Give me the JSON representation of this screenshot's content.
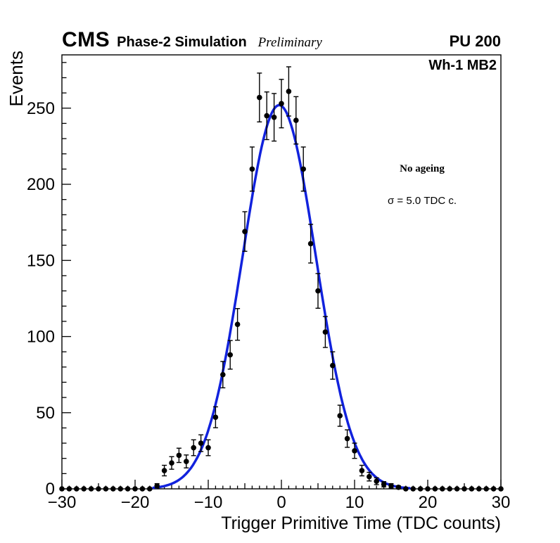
{
  "header": {
    "cms": "CMS",
    "subtitle": "Phase-2 Simulation",
    "preliminary": "Preliminary",
    "right_label": "PU 200"
  },
  "plot": {
    "corner_label": "Wh-1 MB2",
    "annotation_line1": "No ageing",
    "annotation_line2": "σ = 5.0 TDC c."
  },
  "colors": {
    "fit_line": "#1122dd",
    "marker": "#000000",
    "frame": "#000000"
  },
  "chart_data": {
    "type": "scatter",
    "title": "",
    "xlabel": "Trigger Primitive Time (TDC counts)",
    "ylabel": "Events",
    "xlim": [
      -30,
      30
    ],
    "ylim": [
      0,
      285
    ],
    "x_major_ticks": [
      -30,
      -20,
      -10,
      0,
      10,
      20,
      30
    ],
    "y_major_ticks": [
      0,
      50,
      100,
      150,
      200,
      250
    ],
    "grid": false,
    "legend": "none",
    "error_model": "sqrt",
    "points": {
      "x": [
        -30,
        -29,
        -28,
        -27,
        -26,
        -25,
        -24,
        -23,
        -22,
        -21,
        -20,
        -19,
        -18,
        -17,
        -16,
        -15,
        -14,
        -13,
        -12,
        -11,
        -10,
        -9,
        -8,
        -7,
        -6,
        -5,
        -4,
        -3,
        -2,
        -1,
        0,
        1,
        2,
        3,
        4,
        5,
        6,
        7,
        8,
        9,
        10,
        11,
        12,
        13,
        14,
        15,
        16,
        17,
        18,
        19,
        20,
        21,
        22,
        23,
        24,
        25,
        26,
        27,
        28,
        29,
        30
      ],
      "y": [
        0,
        0,
        0,
        0,
        0,
        0,
        0,
        0,
        0,
        0,
        0,
        0,
        0,
        2,
        12,
        17,
        22,
        18,
        27,
        30,
        27,
        47,
        75,
        88,
        108,
        169,
        210,
        257,
        245,
        244,
        253,
        261,
        242,
        210,
        161,
        130,
        103,
        81,
        48,
        33,
        25,
        12,
        8,
        5,
        3,
        2,
        1,
        0,
        0,
        0,
        0,
        0,
        0,
        0,
        0,
        0,
        0,
        0,
        0,
        0,
        0
      ]
    },
    "fit": {
      "type": "gaussian",
      "amplitude": 252,
      "mean": -0.3,
      "sigma": 5.0,
      "range": [
        -17.5,
        17.5
      ],
      "color": "#1122dd"
    }
  }
}
